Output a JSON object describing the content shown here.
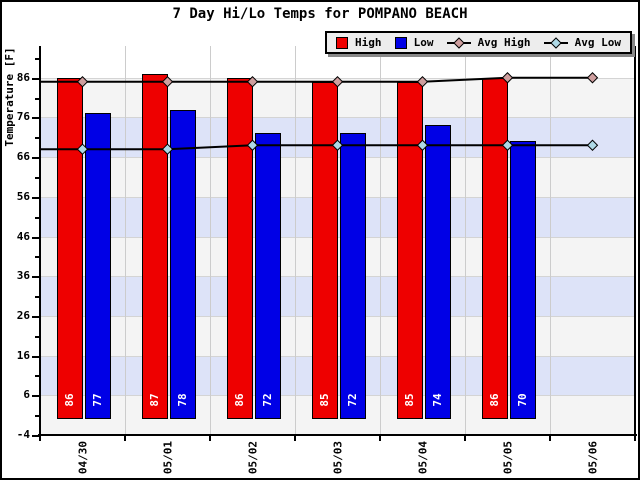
{
  "chart_data": {
    "type": "bar",
    "title": "7 Day Hi/Lo Temps for POMPANO BEACH",
    "ylabel": "Temperature [F]",
    "xlabel": "",
    "categories": [
      "04/30",
      "05/01",
      "05/02",
      "05/03",
      "05/04",
      "05/05",
      "05/06"
    ],
    "series": [
      {
        "name": "High",
        "type": "bar",
        "color": "#ee0000",
        "values": [
          86,
          87,
          86,
          85,
          85,
          86,
          null
        ]
      },
      {
        "name": "Low",
        "type": "bar",
        "color": "#0000e6",
        "values": [
          77,
          78,
          72,
          72,
          74,
          70,
          null
        ]
      },
      {
        "name": "Avg High",
        "type": "line",
        "line_color": "#000000",
        "marker_color": "#cf9f9f",
        "values": [
          85,
          85,
          85,
          85,
          85,
          86,
          86
        ]
      },
      {
        "name": "Avg Low",
        "type": "line",
        "line_color": "#000000",
        "marker_color": "#aed9e6",
        "values": [
          68,
          68,
          69,
          69,
          69,
          69,
          69
        ]
      }
    ],
    "ylim": [
      -4,
      94
    ],
    "yticks": [
      -4,
      6,
      16,
      26,
      36,
      46,
      56,
      66,
      76,
      86
    ],
    "bar_baseline": 0,
    "bar_value_labels_color": "#ffffff",
    "grid": true,
    "legend_position": "top-right",
    "background_bands": {
      "range": [
        -4,
        86
      ],
      "step": 10,
      "colors": [
        "#f4f4f4",
        "#dde3f8"
      ]
    },
    "gridline_color": "#cccccc",
    "band_edge_color": "#d4d4d4"
  }
}
